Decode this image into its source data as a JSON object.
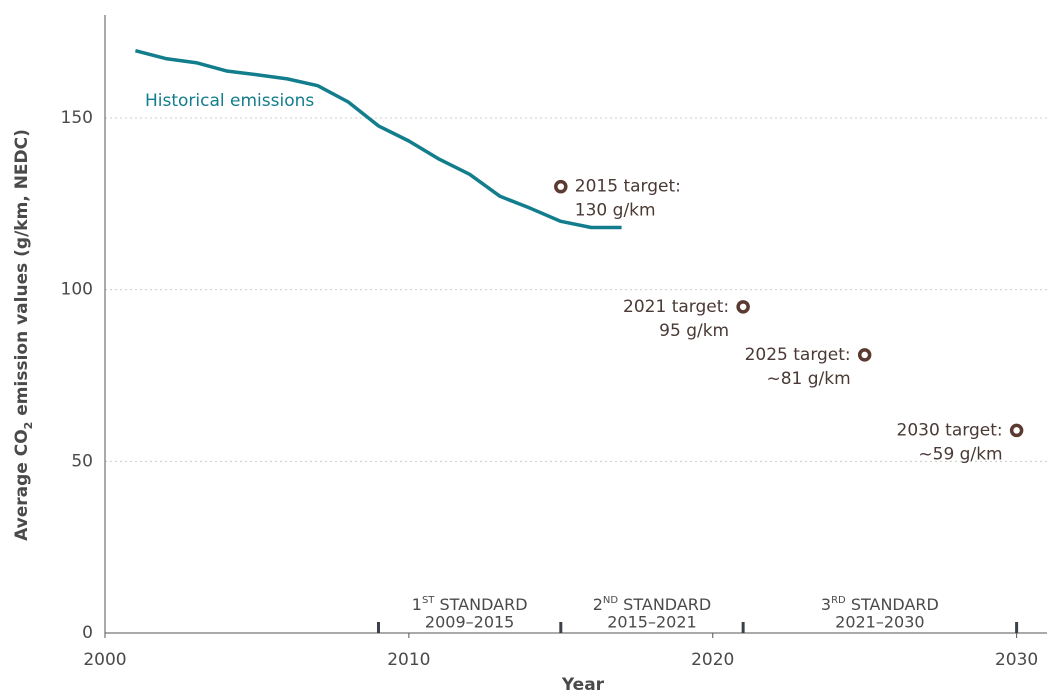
{
  "chart_data": {
    "type": "line",
    "ylabel": {
      "main": "Average CO",
      "sub": "2",
      "rest": " emission values (g/km, NEDC)"
    },
    "xlabel": "Year",
    "xlim": [
      2000,
      2031
    ],
    "xticks": [
      2000,
      2010,
      2020,
      2030
    ],
    "ylim": [
      0,
      180
    ],
    "yticks": [
      0,
      50,
      100,
      150
    ],
    "grid": true,
    "series": [
      {
        "name": "Historical emissions",
        "color": "#127d8c",
        "x": [
          2001,
          2002,
          2003,
          2004,
          2005,
          2006,
          2007,
          2008,
          2009,
          2010,
          2011,
          2012,
          2013,
          2014,
          2015,
          2016,
          2017
        ],
        "values": [
          169.6,
          167.3,
          166.1,
          163.7,
          162.6,
          161.4,
          159.4,
          154.7,
          147.7,
          143.3,
          138,
          133.6,
          127.2,
          123.7,
          119.9,
          118.1,
          118.1
        ]
      }
    ],
    "targets": {
      "color": "#5b3a31",
      "points": [
        {
          "x": 2015,
          "value": 130,
          "label": [
            "2015 target:",
            "130 g/km"
          ]
        },
        {
          "x": 2021,
          "value": 95,
          "label": [
            "2021 target:",
            "95 g/km"
          ]
        },
        {
          "x": 2025,
          "value": 81,
          "label": [
            "2025 target:",
            "~81 g/km"
          ]
        },
        {
          "x": 2030,
          "value": 59,
          "label": [
            "2030 target:",
            "~59 g/km"
          ]
        }
      ]
    },
    "standards": [
      {
        "start": 2009,
        "end": 2015,
        "num": "1",
        "sup": "ST",
        "name": " STANDARD",
        "period": "2009–2015"
      },
      {
        "start": 2015,
        "end": 2021,
        "num": "2",
        "sup": "ND",
        "name": " STANDARD",
        "period": "2015–2021"
      },
      {
        "start": 2021,
        "end": 2030,
        "num": "3",
        "sup": "RD",
        "name": " STANDARD",
        "period": "2021–2030"
      }
    ]
  }
}
